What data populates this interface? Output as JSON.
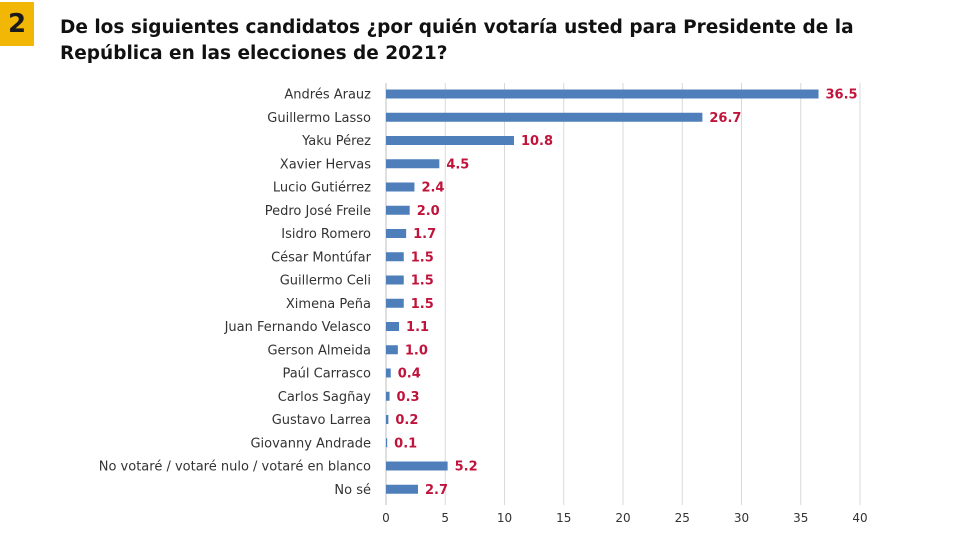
{
  "question": {
    "number": "2",
    "text": "De los siguientes candidatos ¿por quién votaría usted para Presidente de la República en las elecciones de 2021?"
  },
  "colors": {
    "badge": "#f2b705",
    "bar": "#4f7fba",
    "value_label": "#c0143c",
    "gridline": "#d9d9d9"
  },
  "chart_data": {
    "type": "bar",
    "orientation": "horizontal",
    "title": "",
    "xlabel": "",
    "ylabel": "",
    "categories": [
      "Andrés Arauz",
      "Guillermo Lasso",
      "Yaku Pérez",
      "Xavier Hervas",
      "Lucio Gutiérrez",
      "Pedro José Freile",
      "Isidro Romero",
      "César Montúfar",
      "Guillermo Celi",
      "Ximena Peña",
      "Juan Fernando Velasco",
      "Gerson Almeida",
      "Paúl Carrasco",
      "Carlos Sagñay",
      "Gustavo Larrea",
      "Giovanny Andrade",
      "No votaré / votaré nulo / votaré en blanco",
      "No sé"
    ],
    "values": [
      36.5,
      26.7,
      10.8,
      4.5,
      2.4,
      2.0,
      1.7,
      1.5,
      1.5,
      1.5,
      1.1,
      1.0,
      0.4,
      0.3,
      0.2,
      0.1,
      5.2,
      2.7
    ],
    "value_labels": [
      "36.5",
      "26.7",
      "10.8",
      "4.5",
      "2.4",
      "2.0",
      "1.7",
      "1.5",
      "1.5",
      "1.5",
      "1.1",
      "1.0",
      "0.4",
      "0.3",
      "0.2",
      "0.1",
      "5.2",
      "2.7"
    ],
    "xlim": [
      0,
      40
    ],
    "x_ticks": [
      0,
      5,
      10,
      15,
      20,
      25,
      30,
      35,
      40
    ],
    "grid": true,
    "legend": "none"
  }
}
